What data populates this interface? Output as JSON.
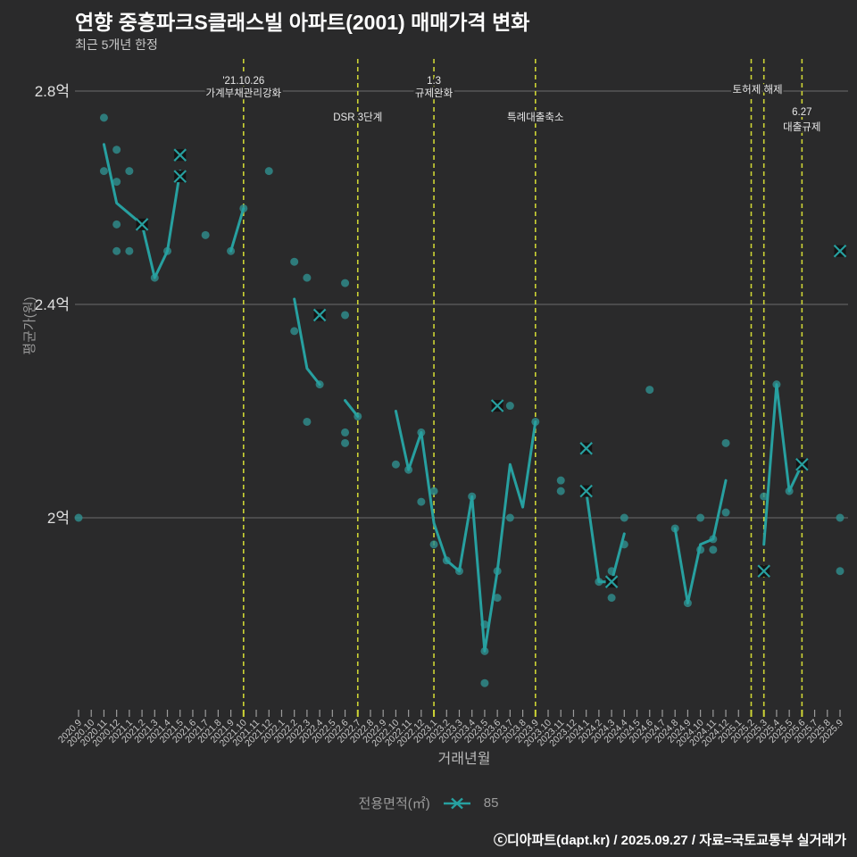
{
  "title": "연향 중흥파크S클래스빌 아파트(2001) 매매가격 변화",
  "subtitle": "최근 5개년 한정",
  "y_axis": {
    "title": "평균가(원)"
  },
  "x_axis": {
    "title": "거래년월"
  },
  "legend": {
    "label": "전용면적(㎡)",
    "series": "85"
  },
  "footer": "ⓒ디아파트(dapt.kr) / 2025.09.27 / 자료=국토교통부 실거래가",
  "colors": {
    "background": "#2a2a2b",
    "line": "#27a0a0",
    "dot": "#2f9090",
    "marker": "#27a0a0",
    "marker_box": "#141414",
    "event_line": "#cdd435",
    "grid": "#7d7d7d",
    "annotation_text": "#e8e8e8"
  },
  "chart_data": {
    "type": "line+scatter",
    "unit": "억원",
    "grid": "horizontal",
    "legend_position": "bottom-center",
    "ylim": [
      1.62,
      2.85
    ],
    "y_ticks": [
      {
        "label": "2.8억",
        "value": 2.8
      },
      {
        "label": "2.4억",
        "value": 2.4
      },
      {
        "label": "2억",
        "value": 2.0
      }
    ],
    "x": [
      "2020.9",
      "2020.10",
      "2020.11",
      "2020.12",
      "2021.1",
      "2021.2",
      "2021.3",
      "2021.4",
      "2021.5",
      "2021.6",
      "2021.7",
      "2021.8",
      "2021.9",
      "2021.10",
      "2021.11",
      "2021.12",
      "2022.1",
      "2022.2",
      "2022.3",
      "2022.4",
      "2022.5",
      "2022.6",
      "2022.7",
      "2022.8",
      "2022.9",
      "2022.10",
      "2022.11",
      "2022.12",
      "2023.1",
      "2023.2",
      "2023.3",
      "2023.4",
      "2023.5",
      "2023.6",
      "2023.7",
      "2023.8",
      "2023.9",
      "2023.10",
      "2023.11",
      "2023.12",
      "2024.1",
      "2024.2",
      "2024.3",
      "2024.4",
      "2024.5",
      "2024.6",
      "2024.7",
      "2024.8",
      "2024.9",
      "2024.10",
      "2024.11",
      "2024.12",
      "2025.1",
      "2025.2",
      "2025.3",
      "2025.4",
      "2025.5",
      "2025.6",
      "2025.7",
      "2025.8",
      "2025.9"
    ],
    "event_lines": [
      "2021.10",
      "2022.7",
      "2023.1",
      "2023.9",
      "2025.2",
      "2025.3",
      "2025.6"
    ],
    "annotations": [
      {
        "text": "'21.10.26",
        "month": "2021.10",
        "y": 94
      },
      {
        "text": "가계부채관리강화",
        "month": "2021.10",
        "y": 108
      },
      {
        "text": "DSR 3단계",
        "month": "2022.7",
        "y": 135
      },
      {
        "text": "1.3",
        "month": "2023.1",
        "y": 94
      },
      {
        "text": "규제완화",
        "month": "2023.1",
        "y": 108
      },
      {
        "text": "특례대출축소",
        "month": "2023.9",
        "y": 135
      },
      {
        "text": "토허제 해제",
        "month": "2025.2",
        "month2": "2025.3",
        "y": 104
      },
      {
        "text": "6.27",
        "month": "2025.6",
        "y": 129
      },
      {
        "text": "대출규제",
        "month": "2025.6",
        "y": 146
      }
    ],
    "series": [
      {
        "name": "85",
        "marker": "x",
        "line_segments": [
          [
            [
              "2020.11",
              2.7
            ],
            [
              "2020.12",
              2.59
            ],
            [
              "2021.1",
              2.57
            ],
            [
              "2021.2",
              2.55
            ],
            [
              "2021.3",
              2.45
            ],
            [
              "2021.4",
              2.5
            ],
            [
              "2021.5",
              2.65
            ]
          ],
          [
            [
              "2021.9",
              2.5
            ],
            [
              "2021.10",
              2.58
            ]
          ],
          [
            [
              "2022.2",
              2.41
            ],
            [
              "2022.3",
              2.28
            ],
            [
              "2022.4",
              2.25
            ]
          ],
          [
            [
              "2022.6",
              2.22
            ],
            [
              "2022.7",
              2.19
            ]
          ],
          [
            [
              "2022.10",
              2.2
            ],
            [
              "2022.11",
              2.09
            ],
            [
              "2022.12",
              2.16
            ],
            [
              "2023.1",
              1.99
            ],
            [
              "2023.2",
              1.92
            ],
            [
              "2023.3",
              1.9
            ],
            [
              "2023.4",
              2.04
            ],
            [
              "2023.5",
              1.75
            ],
            [
              "2023.6",
              1.9
            ],
            [
              "2023.7",
              2.1
            ],
            [
              "2023.8",
              2.02
            ],
            [
              "2023.9",
              2.18
            ]
          ],
          [
            [
              "2024.1",
              2.05
            ],
            [
              "2024.2",
              1.88
            ],
            [
              "2024.3",
              1.88
            ],
            [
              "2024.4",
              1.97
            ]
          ],
          [
            [
              "2024.8",
              1.98
            ],
            [
              "2024.9",
              1.84
            ],
            [
              "2024.10",
              1.95
            ],
            [
              "2024.11",
              1.96
            ],
            [
              "2024.12",
              2.07
            ]
          ],
          [
            [
              "2025.3",
              1.95
            ],
            [
              "2025.4",
              2.25
            ],
            [
              "2025.5",
              2.05
            ],
            [
              "2025.6",
              2.1
            ]
          ]
        ],
        "x_markers": [
          [
            "2021.2",
            2.55
          ],
          [
            "2021.5",
            2.68
          ],
          [
            "2021.5",
            2.64
          ],
          [
            "2022.4",
            2.38
          ],
          [
            "2023.6",
            2.21
          ],
          [
            "2024.1",
            2.13
          ],
          [
            "2024.1",
            2.05
          ],
          [
            "2024.3",
            1.88
          ],
          [
            "2025.3",
            1.9
          ],
          [
            "2025.6",
            2.1
          ],
          [
            "2025.9",
            2.5
          ]
        ],
        "scatter": [
          [
            "2020.9",
            2.0
          ],
          [
            "2020.11",
            2.75
          ],
          [
            "2020.11",
            2.65
          ],
          [
            "2020.12",
            2.69
          ],
          [
            "2020.12",
            2.63
          ],
          [
            "2020.12",
            2.55
          ],
          [
            "2020.12",
            2.5
          ],
          [
            "2021.1",
            2.65
          ],
          [
            "2021.1",
            2.5
          ],
          [
            "2021.3",
            2.45
          ],
          [
            "2021.4",
            2.5
          ],
          [
            "2021.7",
            2.53
          ],
          [
            "2021.9",
            2.5
          ],
          [
            "2021.10",
            2.58
          ],
          [
            "2021.12",
            2.65
          ],
          [
            "2022.2",
            2.48
          ],
          [
            "2022.2",
            2.35
          ],
          [
            "2022.3",
            2.45
          ],
          [
            "2022.3",
            2.18
          ],
          [
            "2022.4",
            2.25
          ],
          [
            "2022.6",
            2.44
          ],
          [
            "2022.6",
            2.38
          ],
          [
            "2022.6",
            2.16
          ],
          [
            "2022.6",
            2.14
          ],
          [
            "2022.7",
            2.19
          ],
          [
            "2022.10",
            2.1
          ],
          [
            "2022.11",
            2.09
          ],
          [
            "2022.12",
            2.16
          ],
          [
            "2022.12",
            2.03
          ],
          [
            "2023.1",
            2.05
          ],
          [
            "2023.1",
            1.95
          ],
          [
            "2023.2",
            1.92
          ],
          [
            "2023.3",
            1.9
          ],
          [
            "2023.4",
            2.04
          ],
          [
            "2023.5",
            1.8
          ],
          [
            "2023.5",
            1.75
          ],
          [
            "2023.5",
            1.69
          ],
          [
            "2023.6",
            1.9
          ],
          [
            "2023.6",
            1.85
          ],
          [
            "2023.7",
            2.21
          ],
          [
            "2023.7",
            2.0
          ],
          [
            "2023.9",
            2.18
          ],
          [
            "2023.11",
            2.07
          ],
          [
            "2023.11",
            2.05
          ],
          [
            "2024.2",
            1.88
          ],
          [
            "2024.3",
            1.9
          ],
          [
            "2024.3",
            1.85
          ],
          [
            "2024.4",
            2.0
          ],
          [
            "2024.4",
            1.95
          ],
          [
            "2024.6",
            2.24
          ],
          [
            "2024.8",
            1.98
          ],
          [
            "2024.9",
            1.84
          ],
          [
            "2024.10",
            2.0
          ],
          [
            "2024.10",
            1.94
          ],
          [
            "2024.11",
            1.96
          ],
          [
            "2024.11",
            1.94
          ],
          [
            "2024.12",
            2.14
          ],
          [
            "2024.12",
            2.01
          ],
          [
            "2025.3",
            2.04
          ],
          [
            "2025.4",
            2.25
          ],
          [
            "2025.5",
            2.05
          ],
          [
            "2025.9",
            2.0
          ],
          [
            "2025.9",
            1.9
          ]
        ]
      }
    ]
  }
}
